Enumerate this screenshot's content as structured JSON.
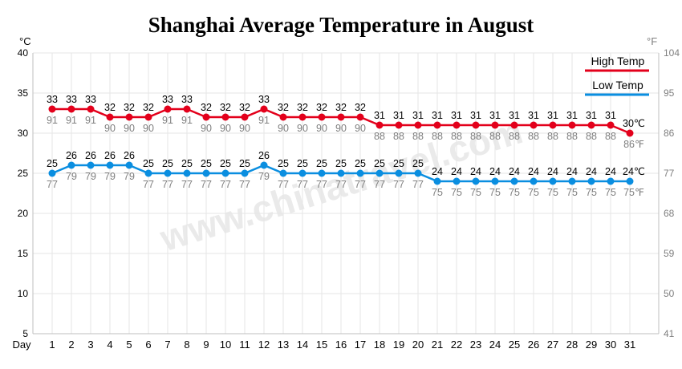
{
  "chart_data": {
    "type": "line",
    "title": "Shanghai Average Temperature in August",
    "left_unit": "°C",
    "right_unit": "°F",
    "x_label": "Day",
    "x": [
      1,
      2,
      3,
      4,
      5,
      6,
      7,
      8,
      9,
      10,
      11,
      12,
      13,
      14,
      15,
      16,
      17,
      18,
      19,
      20,
      21,
      22,
      23,
      24,
      25,
      26,
      27,
      28,
      29,
      30,
      31
    ],
    "ylim_c": [
      5,
      40
    ],
    "y_ticks_c": [
      5,
      10,
      15,
      20,
      25,
      30,
      35,
      40
    ],
    "ylim_f": [
      41,
      104
    ],
    "y_ticks_f": [
      41,
      50,
      59,
      68,
      77,
      86,
      95,
      104
    ],
    "grid": true,
    "legend_position": "top-right",
    "watermark": "www.chinatravel.com",
    "series": [
      {
        "name": "High Temp",
        "color": "#e3001b",
        "end_unit_c": "℃",
        "end_unit_f": "℉",
        "values_c": [
          33,
          33,
          33,
          32,
          32,
          32,
          33,
          33,
          32,
          32,
          32,
          33,
          32,
          32,
          32,
          32,
          32,
          31,
          31,
          31,
          31,
          31,
          31,
          31,
          31,
          31,
          31,
          31,
          31,
          31,
          30
        ],
        "values_f": [
          91,
          91,
          91,
          90,
          90,
          90,
          91,
          91,
          90,
          90,
          90,
          91,
          90,
          90,
          90,
          90,
          90,
          88,
          88,
          88,
          88,
          88,
          88,
          88,
          88,
          88,
          88,
          88,
          88,
          88,
          86
        ]
      },
      {
        "name": "Low Temp",
        "color": "#0a8ee0",
        "end_unit_c": "℃",
        "end_unit_f": "℉",
        "values_c": [
          25,
          26,
          26,
          26,
          26,
          25,
          25,
          25,
          25,
          25,
          25,
          26,
          25,
          25,
          25,
          25,
          25,
          25,
          25,
          25,
          24,
          24,
          24,
          24,
          24,
          24,
          24,
          24,
          24,
          24,
          24
        ],
        "values_f": [
          77,
          79,
          79,
          79,
          79,
          77,
          77,
          77,
          77,
          77,
          77,
          79,
          77,
          77,
          77,
          77,
          77,
          77,
          77,
          77,
          75,
          75,
          75,
          75,
          75,
          75,
          75,
          75,
          75,
          75,
          75
        ]
      }
    ]
  }
}
